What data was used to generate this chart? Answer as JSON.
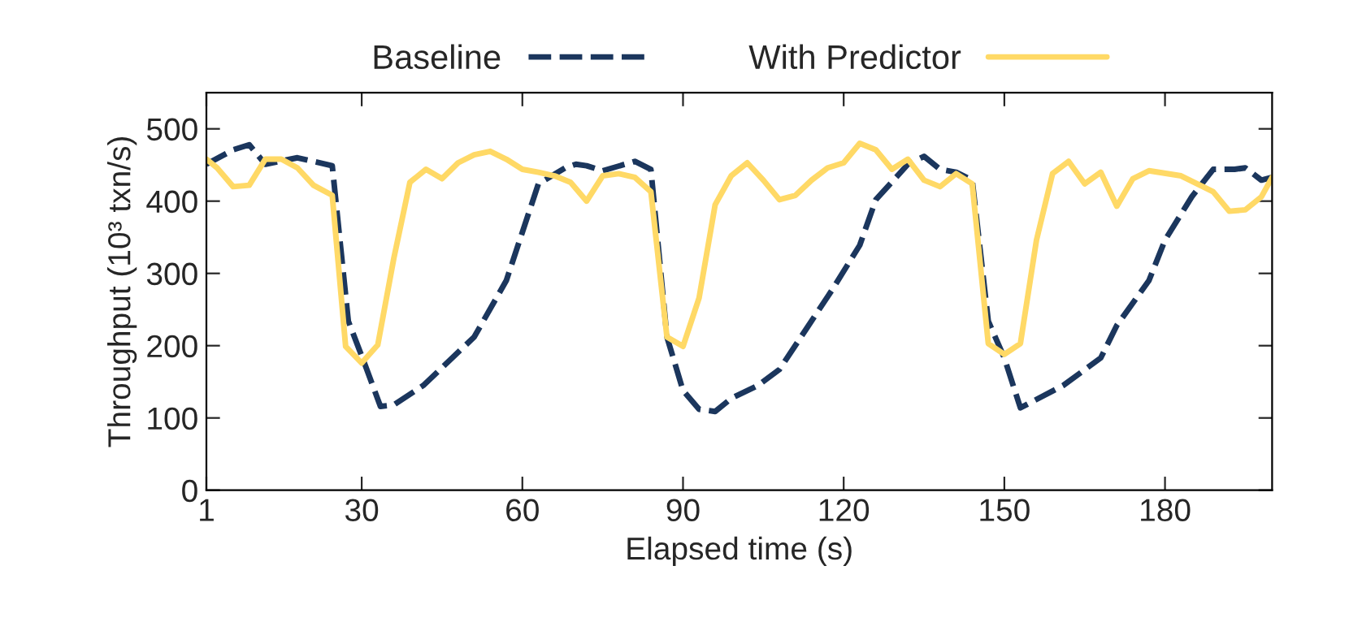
{
  "chart_data": {
    "type": "line",
    "xlabel": "Elapsed time (s)",
    "ylabel": "Throughput (10³ txn/s)",
    "xlim": [
      1,
      200
    ],
    "xticks": [
      1,
      30,
      60,
      90,
      120,
      150,
      180
    ],
    "ylim": [
      0,
      550
    ],
    "yticks": [
      0,
      100,
      200,
      300,
      400,
      500
    ],
    "grid": false,
    "legend": "top",
    "marker": "none",
    "series": [
      {
        "name": "Baseline",
        "color": "#1b365d",
        "line_style": "dashed",
        "x": [
          1,
          6,
          9,
          12,
          18,
          24.5,
          27.5,
          30.5,
          33.5,
          36,
          41.5,
          51,
          57,
          63,
          68,
          70,
          72,
          75,
          81,
          84,
          87,
          90,
          93,
          96,
          99,
          104,
          108,
          113,
          118,
          123,
          126,
          132,
          135,
          138,
          141,
          144,
          147,
          150,
          153,
          161,
          168,
          171,
          177,
          180,
          185,
          189,
          193,
          195,
          198,
          200
        ],
        "values": [
          451,
          471,
          478,
          451,
          460,
          449,
          234,
          176,
          116,
          118,
          145,
          212,
          290,
          424,
          446,
          451,
          449,
          442,
          455,
          444,
          212,
          138,
          112,
          109,
          127,
          145,
          167,
          223,
          279,
          339,
          402,
          451,
          462,
          444,
          440,
          429,
          234,
          183,
          114,
          145,
          183,
          228,
          290,
          346,
          406,
          444,
          444,
          446,
          429,
          433
        ]
      },
      {
        "name": "With Predictor",
        "color": "#ffd966",
        "line_style": "solid",
        "x": [
          1,
          3,
          6,
          9,
          12,
          15,
          18,
          21,
          24.5,
          27,
          30,
          33,
          36,
          39,
          42,
          45,
          48,
          51,
          54,
          57,
          60,
          63,
          66,
          69,
          72,
          75,
          78,
          81,
          84,
          87,
          90,
          93,
          96,
          99,
          102,
          105,
          108,
          111,
          114,
          117,
          120,
          123,
          126,
          129,
          132,
          135,
          138,
          141,
          144,
          147,
          150,
          153,
          156,
          159,
          162,
          165,
          168,
          171,
          174,
          177,
          183,
          189,
          192,
          195,
          198,
          200
        ],
        "values": [
          458,
          446,
          420,
          422,
          458,
          458,
          446,
          422,
          408,
          199,
          176,
          201,
          321,
          426,
          444,
          431,
          453,
          464,
          469,
          458,
          444,
          440,
          435,
          426,
          400,
          435,
          438,
          433,
          413,
          212,
          199,
          266,
          395,
          435,
          453,
          429,
          402,
          408,
          429,
          446,
          453,
          480,
          471,
          444,
          458,
          429,
          420,
          438,
          424,
          203,
          188,
          203,
          346,
          438,
          455,
          424,
          440,
          393,
          431,
          442,
          435,
          413,
          386,
          388,
          406,
          433
        ]
      }
    ]
  }
}
